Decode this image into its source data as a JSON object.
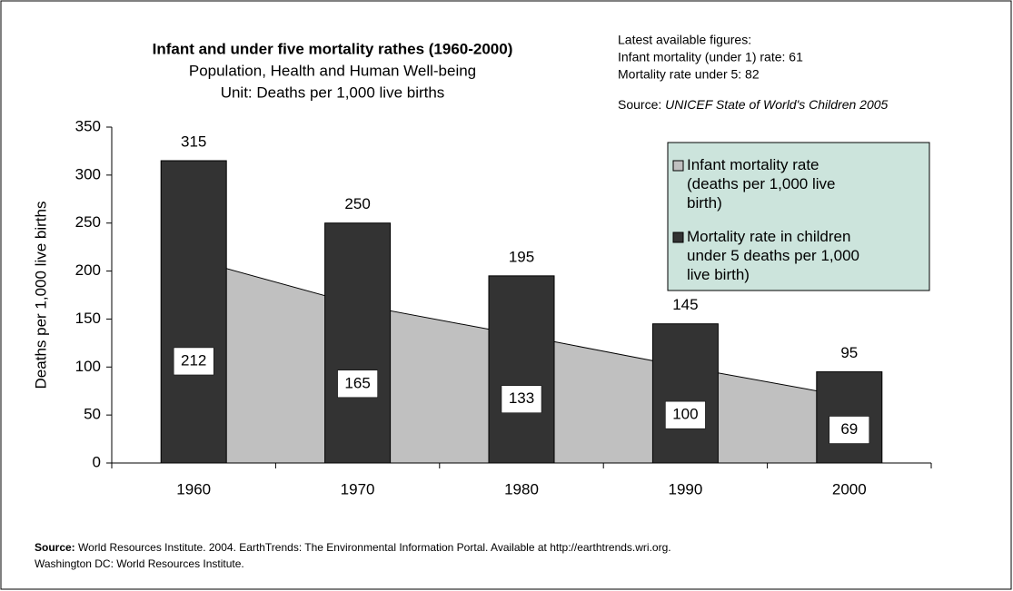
{
  "chart_data": {
    "type": "bar",
    "title": "Infant and under five mortality rathes (1960-2000)",
    "subtitle": "Population, Health and Human Well-being",
    "unit": "Unit: Deaths per 1,000 live births",
    "notes": [
      "Latest available figures:",
      "Infant mortality (under 1) rate: 61",
      "Mortality rate under 5: 82"
    ],
    "notes_source_label": "Source:",
    "notes_source_text": "UNICEF State of World's Children 2005",
    "ylabel": "Deaths per 1,000 live births",
    "categories": [
      "1960",
      "1970",
      "1980",
      "1990",
      "2000"
    ],
    "series": [
      {
        "name": "Infant mortality rate (deaths per 1,000 live birth)",
        "type": "area",
        "color": "#c0c0c0",
        "values": [
          212,
          165,
          133,
          100,
          69
        ]
      },
      {
        "name": "Mortality rate in children under 5 deaths per 1,000 live birth)",
        "type": "bar",
        "color": "#333333",
        "values": [
          315,
          250,
          195,
          145,
          95
        ]
      }
    ],
    "ylim": [
      0,
      350
    ],
    "yticks": [
      0,
      50,
      100,
      150,
      200,
      250,
      300,
      350
    ],
    "legend": "upper right",
    "legend_color": "#cce4dc",
    "footer_label": "Source:",
    "footer_lines": [
      "World Resources Institute. 2004. EarthTrends: The Environmental Information Portal. Available at http://earthtrends.wri.org.",
      "Washington DC: World Resources Institute."
    ]
  }
}
